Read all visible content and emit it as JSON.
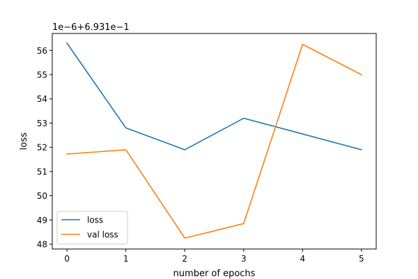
{
  "chart_data": {
    "type": "line",
    "title": "",
    "xlabel": "number of epochs",
    "ylabel": "loss",
    "offset_label": "1e−6+6.931e−1",
    "x": [
      0,
      1,
      2,
      3,
      4,
      5
    ],
    "xlim": [
      -0.25,
      5.25
    ],
    "ylim": [
      47.8,
      56.7
    ],
    "xticks": [
      "0",
      "1",
      "2",
      "3",
      "4",
      "5"
    ],
    "yticks": [
      "48",
      "49",
      "50",
      "51",
      "52",
      "53",
      "54",
      "55",
      "56"
    ],
    "grid": false,
    "legend_position": "lower-left",
    "series": [
      {
        "name": "loss",
        "color": "#1f77b4",
        "values": [
          56.3,
          52.8,
          51.9,
          53.2,
          52.55,
          51.9
        ]
      },
      {
        "name": "val loss",
        "color": "#ff7f0e",
        "values": [
          51.72,
          51.9,
          48.25,
          48.85,
          56.25,
          55.0
        ]
      }
    ]
  }
}
